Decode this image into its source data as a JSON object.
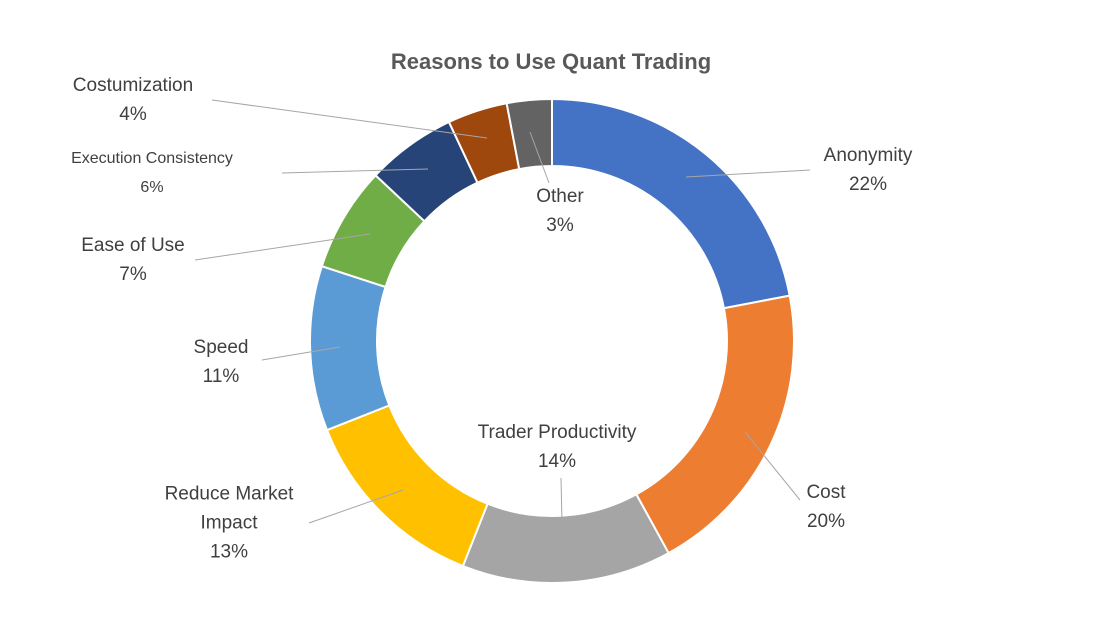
{
  "chart_data": {
    "type": "donut",
    "title": "Reasons to Use Quant Trading",
    "categories": [
      "Anonymity",
      "Cost",
      "Trader Productivity",
      "Reduce Market Impact",
      "Speed",
      "Ease of Use",
      "Execution Consistency",
      "Costumization",
      "Other"
    ],
    "values": [
      22,
      20,
      14,
      13,
      11,
      7,
      6,
      4,
      3
    ],
    "value_labels": [
      "22%",
      "20%",
      "14%",
      "13%",
      "11%",
      "7%",
      "6%",
      "4%",
      "3%"
    ],
    "colors": [
      "#4472c4",
      "#ed7d31",
      "#a5a5a5",
      "#ffc000",
      "#5b9bd5",
      "#70ad47",
      "#264478",
      "#9e480e",
      "#636363"
    ]
  }
}
